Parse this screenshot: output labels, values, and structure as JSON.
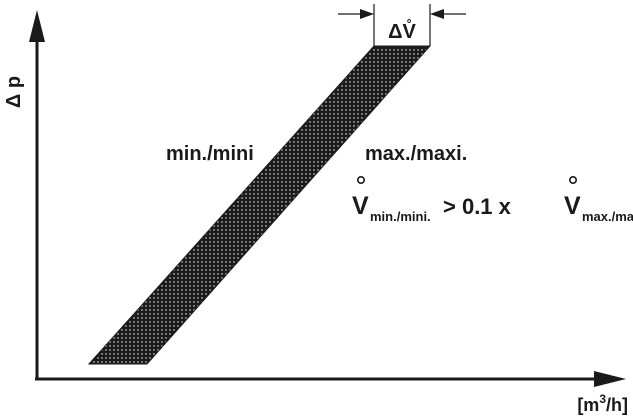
{
  "y_axis_label": "Δ p",
  "x_axis_unit": {
    "prefix": "[m",
    "sup": "3",
    "suffix": "/h]"
  },
  "delta_label": "ΔV̊",
  "label_min": "min./mini",
  "label_max": "max./maxi.",
  "formula": {
    "lhs_symbol": "V",
    "lhs_sub": "min./mini.",
    "operator": "> 0.1 x",
    "rhs_symbol": "V",
    "rhs_sub": "max./maxi"
  },
  "colors": {
    "ink": "#1a1a1a",
    "band_fill": "#1a1a1a",
    "band_dots": "#ffffff"
  }
}
